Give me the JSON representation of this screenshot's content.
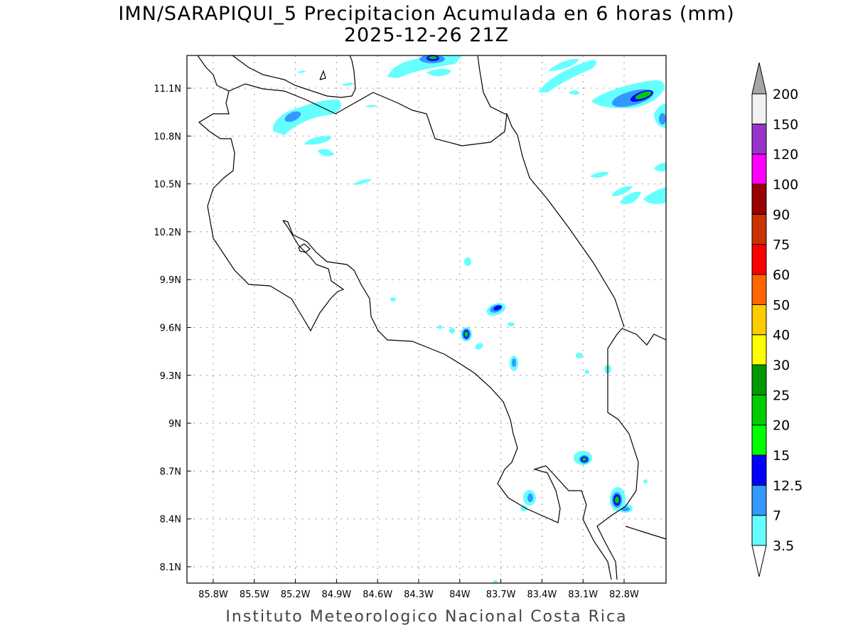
{
  "title": {
    "line1": "IMN/SARAPIQUI_5 Precipitacion Acumulada en 6 horas (mm)",
    "line2": "2025-12-26 21Z"
  },
  "footer": "Instituto Meteorologico Nacional Costa Rica",
  "map": {
    "lon_ticks": [
      "85.8W",
      "85.5W",
      "85.2W",
      "84.9W",
      "84.6W",
      "84.3W",
      "84W",
      "83.7W",
      "83.4W",
      "83.1W",
      "82.8W"
    ],
    "lat_ticks": [
      "11.1N",
      "10.8N",
      "10.5N",
      "10.2N",
      "9.9N",
      "9.6N",
      "9.3N",
      "9N",
      "8.7N",
      "8.4N",
      "8.1N"
    ]
  },
  "colorbar": {
    "levels": [
      "3.5",
      "7",
      "12.5",
      "15",
      "20",
      "25",
      "30",
      "40",
      "50",
      "60",
      "75",
      "90",
      "100",
      "120",
      "150",
      "200"
    ],
    "colors": [
      "#66ffff",
      "#3399ff",
      "#0000ff",
      "#00ff00",
      "#00cc00",
      "#009900",
      "#ffff00",
      "#ffcc00",
      "#ff6600",
      "#ff0000",
      "#cc3300",
      "#990000",
      "#ff00ff",
      "#9933cc",
      "#f2f2f2"
    ],
    "over_color": "#a6a6a6",
    "under_color": "#ffffff"
  }
}
